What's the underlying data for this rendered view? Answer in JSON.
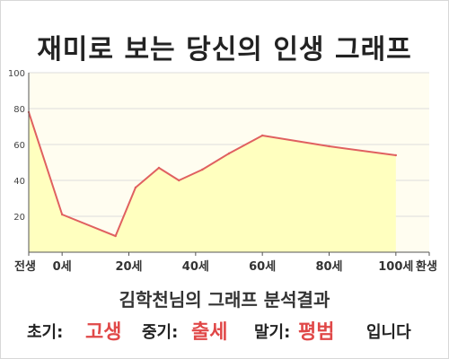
{
  "title": "재미로 보는 당신의 인생 그래프",
  "subtitle": "김학천님의 그래프 분석결과",
  "result": {
    "early_label": "초기:",
    "early_value": "고생",
    "middle_label": "중기:",
    "middle_value": "출세",
    "late_label": "말기:",
    "late_value": "평범",
    "ending": "입니다"
  },
  "colors": {
    "line": "#e06060",
    "fill": "#ffffbf",
    "plot_background": "#fffdf0",
    "highlight_text": "#e04848",
    "grid": "#dddddd",
    "axis": "#555555"
  },
  "chart_data": {
    "type": "area",
    "x_tick_labels": [
      "전생",
      "0세",
      "20세",
      "40세",
      "60세",
      "80세",
      "100세",
      "환생"
    ],
    "x": [
      -10,
      0,
      16,
      22,
      29,
      35,
      42,
      50,
      60,
      80,
      100
    ],
    "y": [
      78,
      21,
      9,
      36,
      47,
      40,
      46,
      55,
      65,
      59,
      54
    ],
    "x_mapping": {
      "labels": [
        "전생",
        "0세",
        "20세",
        "40세",
        "60세",
        "80세",
        "100세",
        "환생"
      ],
      "values": [
        -10,
        0,
        20,
        40,
        60,
        80,
        100,
        110
      ]
    },
    "xlim": [
      -10,
      110
    ],
    "ylim": [
      0,
      100
    ],
    "y_ticks": [
      20,
      40,
      60,
      80,
      100
    ],
    "grid": true,
    "legend": "none"
  }
}
